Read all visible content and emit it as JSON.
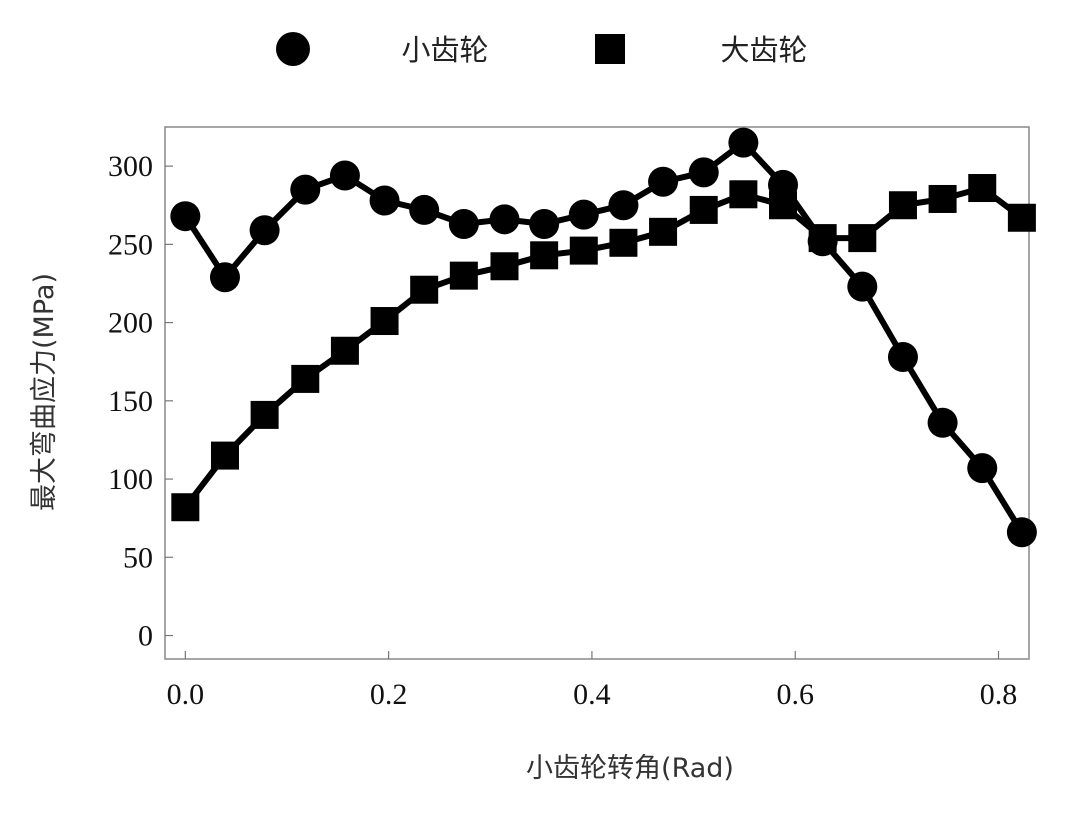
{
  "chart_data": {
    "type": "line",
    "title": "",
    "xlabel": "小齿轮转角(Rad)",
    "ylabel": "最大弯曲应力(MPa)",
    "xlim": [
      -0.02,
      0.83
    ],
    "ylim": [
      -15,
      325
    ],
    "xticks": [
      0.0,
      0.2,
      0.4,
      0.6,
      0.8
    ],
    "xtick_labels": [
      "0.0",
      "0.2",
      "0.4",
      "0.6",
      "0.8"
    ],
    "yticks": [
      0,
      50,
      100,
      150,
      200,
      250,
      300
    ],
    "ytick_labels": [
      "0",
      "50",
      "100",
      "150",
      "200",
      "250",
      "300"
    ],
    "grid": false,
    "legend_position": "top-center",
    "color": "#000000",
    "x": [
      0.0,
      0.039,
      0.078,
      0.118,
      0.157,
      0.196,
      0.235,
      0.274,
      0.314,
      0.353,
      0.392,
      0.431,
      0.47,
      0.51,
      0.549,
      0.588,
      0.627,
      0.666,
      0.706,
      0.745,
      0.784,
      0.823
    ],
    "series": [
      {
        "name": "小齿轮",
        "marker": "circle",
        "values": [
          268,
          229,
          259,
          285,
          294,
          278,
          272,
          263,
          266,
          263,
          269,
          275,
          290,
          296,
          315,
          288,
          252,
          223,
          178,
          136,
          107,
          66
        ]
      },
      {
        "name": "大齿轮",
        "marker": "square",
        "values": [
          82,
          115,
          141,
          164,
          182,
          201,
          221,
          230,
          236,
          243,
          246,
          251,
          258,
          272,
          282,
          275,
          254,
          254,
          275,
          279,
          286,
          267
        ]
      }
    ]
  }
}
